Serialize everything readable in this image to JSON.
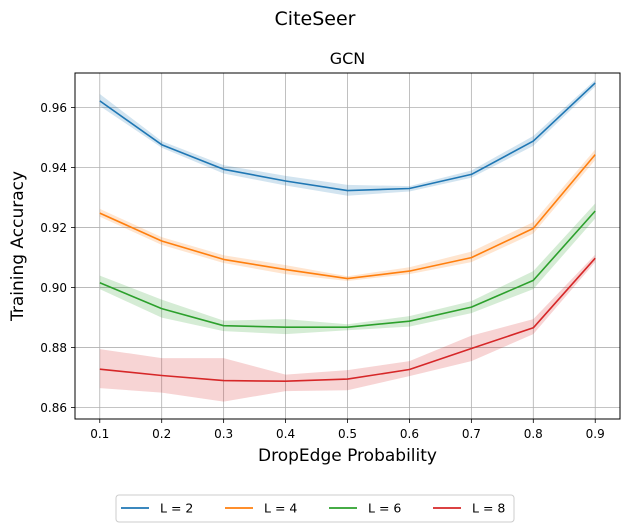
{
  "suptitle": "CiteSeer",
  "chart_data": {
    "type": "line",
    "title": "GCN",
    "xlabel": "DropEdge Probability",
    "ylabel": "Training Accuracy",
    "x": [
      0.1,
      0.2,
      0.3,
      0.4,
      0.5,
      0.6,
      0.7,
      0.8,
      0.9
    ],
    "xlim": [
      0.06,
      0.94
    ],
    "ylim": [
      0.8562,
      0.9715
    ],
    "xticks": [
      "0.1",
      "0.2",
      "0.3",
      "0.4",
      "0.5",
      "0.6",
      "0.7",
      "0.8",
      "0.9"
    ],
    "yticks": [
      0.86,
      0.88,
      0.9,
      0.92,
      0.94,
      0.96
    ],
    "ytick_labels": [
      "0.86",
      "0.88",
      "0.90",
      "0.92",
      "0.94",
      "0.96"
    ],
    "grid": true,
    "legend_position": "bottom-center-outside",
    "series": [
      {
        "name": "L = 2",
        "color": "#1f77b4",
        "values": [
          0.9622,
          0.9476,
          0.9394,
          0.9355,
          0.9323,
          0.933,
          0.9377,
          0.9488,
          0.9682
        ],
        "lower": [
          0.9605,
          0.9466,
          0.938,
          0.934,
          0.9306,
          0.932,
          0.9366,
          0.9472,
          0.967
        ],
        "upper": [
          0.9645,
          0.9488,
          0.9408,
          0.9372,
          0.9342,
          0.9338,
          0.939,
          0.9505,
          0.9692
        ]
      },
      {
        "name": "L = 4",
        "color": "#ff7f0e",
        "values": [
          0.9248,
          0.9155,
          0.9094,
          0.906,
          0.903,
          0.9055,
          0.91,
          0.9197,
          0.9443
        ],
        "lower": [
          0.9236,
          0.9142,
          0.9082,
          0.9045,
          0.9022,
          0.9045,
          0.9085,
          0.918,
          0.9425
        ],
        "upper": [
          0.9262,
          0.9168,
          0.9108,
          0.9075,
          0.9038,
          0.9068,
          0.912,
          0.9218,
          0.946
        ]
      },
      {
        "name": "L = 6",
        "color": "#2ca02c",
        "values": [
          0.9016,
          0.893,
          0.8873,
          0.8868,
          0.8868,
          0.8888,
          0.8935,
          0.9024,
          0.9255
        ],
        "lower": [
          0.8995,
          0.89,
          0.8855,
          0.8845,
          0.8858,
          0.887,
          0.8915,
          0.8995,
          0.923
        ],
        "upper": [
          0.904,
          0.896,
          0.889,
          0.8895,
          0.8878,
          0.8905,
          0.8955,
          0.9055,
          0.928
        ]
      },
      {
        "name": "L = 8",
        "color": "#d62728",
        "values": [
          0.8728,
          0.8707,
          0.869,
          0.8688,
          0.8695,
          0.8727,
          0.8797,
          0.8866,
          0.9098
        ],
        "lower": [
          0.8665,
          0.865,
          0.862,
          0.8655,
          0.8658,
          0.8705,
          0.8755,
          0.8845,
          0.9085
        ],
        "upper": [
          0.8795,
          0.8765,
          0.8765,
          0.871,
          0.8725,
          0.8755,
          0.884,
          0.8895,
          0.911
        ]
      }
    ]
  }
}
